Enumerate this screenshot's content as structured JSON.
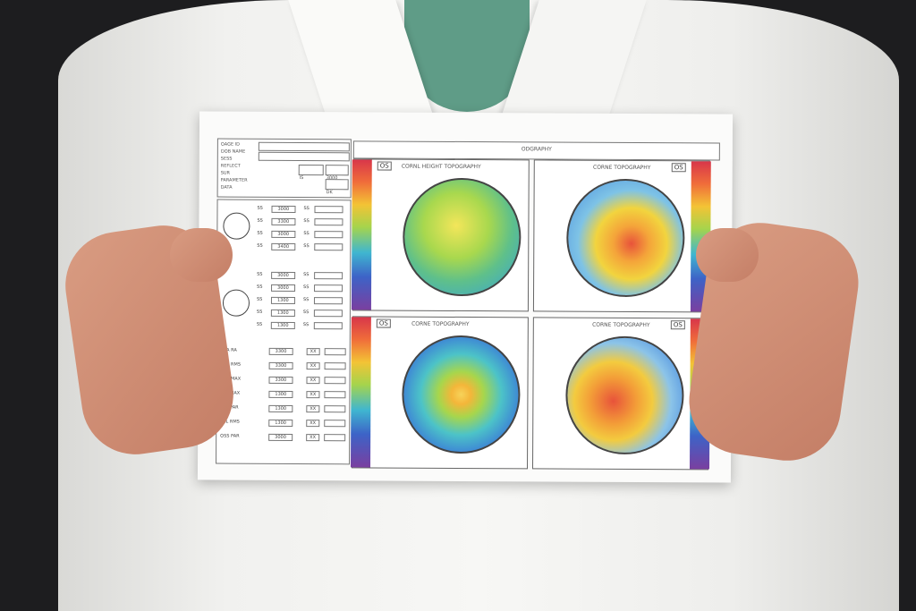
{
  "report": {
    "header": "ODGRAPHY",
    "info_lines": [
      "OAGE ID",
      "DOB NAME",
      "SESS",
      "REFLECT",
      "SUR",
      "PARAMETER",
      "DATA"
    ],
    "info_values": [
      "IS",
      "3000",
      "OD",
      "300",
      "DK"
    ],
    "left_rows": [
      {
        "label": "SS",
        "v1": "3000",
        "v2": "SS"
      },
      {
        "label": "SS",
        "v1": "3300",
        "v2": "SS"
      },
      {
        "label": "SS",
        "v1": "3000",
        "v2": "SS"
      },
      {
        "label": "SS",
        "v1": "3400",
        "v2": "SS"
      },
      {
        "label": "SS",
        "v1": "3000",
        "v2": "SS"
      },
      {
        "label": "SS",
        "v1": "3000",
        "v2": "SS"
      },
      {
        "label": "SS",
        "v1": "1300",
        "v2": "SS"
      },
      {
        "label": "SS",
        "v1": "1300",
        "v2": "SS"
      },
      {
        "label": "SS",
        "v1": "1300",
        "v2": "SS"
      }
    ],
    "bottom_rows": [
      {
        "label": "SSA RA",
        "v1": "3300",
        "v2": "XX"
      },
      {
        "label": "SSA RMS",
        "v1": "3300",
        "v2": "XX"
      },
      {
        "label": "SSA MAX",
        "v1": "3300",
        "v2": "XX"
      },
      {
        "label": "TSL MAX",
        "v1": "1300",
        "v2": "XX"
      },
      {
        "label": "SSL PAR",
        "v1": "1300",
        "v2": "XX"
      },
      {
        "label": "TSL RMS",
        "v1": "1300",
        "v2": "XX"
      },
      {
        "label": "OSS PAR",
        "v1": "3000",
        "v2": "XX"
      }
    ],
    "maps": [
      {
        "title": "CORNL HEIGHT TOPOGRAPHY",
        "eye": "OS",
        "palette": "green-yellow"
      },
      {
        "title": "CORNE TOPOGRAPHY",
        "eye": "OS",
        "palette": "blue-yellow-red"
      },
      {
        "title": "CORNE TOPOGRAPHY",
        "eye": "OS",
        "palette": "blue-green-yellow"
      },
      {
        "title": "CORNE TOPOGRAPHY",
        "eye": "OS",
        "palette": "blue-orange"
      }
    ]
  },
  "colors": {
    "background": "#1d1d1f",
    "shirt": "#f4f4f2",
    "tee": "#5f9c87",
    "skin": "#d39179"
  }
}
